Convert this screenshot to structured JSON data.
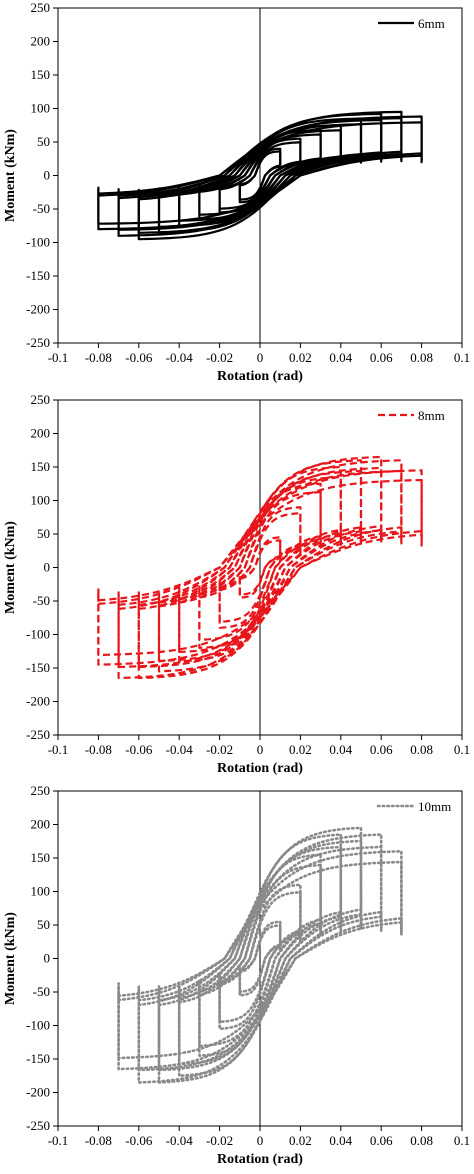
{
  "chart_data": [
    {
      "type": "line",
      "xlabel": "Rotation (rad)",
      "ylabel": "Moment (kNm)",
      "xlim": [
        -0.1,
        0.1
      ],
      "ylim": [
        -250,
        250
      ],
      "xticks": [
        "-0.1",
        "-0.08",
        "-0.06",
        "-0.04",
        "-0.02",
        "0",
        "0.02",
        "0.04",
        "0.06",
        "0.08",
        "0.1"
      ],
      "yticks": [
        "250",
        "200",
        "150",
        "100",
        "50",
        "0",
        "-50",
        "-100",
        "-150",
        "-200",
        "-250"
      ],
      "legend_position": "top-right",
      "grid": false,
      "series": [
        {
          "name": "6mm",
          "color": "#000000",
          "style": "solid",
          "envelope_amplitudes": [
            0.01,
            0.02,
            0.03,
            0.04,
            0.05,
            0.06,
            0.07,
            0.08
          ],
          "envelope_positive_peaks": [
            40,
            55,
            68,
            75,
            85,
            92,
            95,
            88
          ],
          "envelope_negative_peaks": [
            -40,
            -55,
            -65,
            -75,
            -85,
            -95,
            -90,
            -80
          ]
        }
      ]
    },
    {
      "type": "line",
      "xlabel": "Rotation (rad)",
      "ylabel": "Moment (kNm)",
      "xlim": [
        -0.1,
        0.1
      ],
      "ylim": [
        -250,
        250
      ],
      "xticks": [
        "-0.1",
        "-0.08",
        "-0.06",
        "-0.04",
        "-0.02",
        "0",
        "0.02",
        "0.04",
        "0.06",
        "0.08",
        "0.1"
      ],
      "yticks": [
        "250",
        "200",
        "150",
        "100",
        "50",
        "0",
        "-50",
        "-100",
        "-150",
        "-200",
        "-250"
      ],
      "legend_position": "top-right",
      "grid": false,
      "series": [
        {
          "name": "8mm",
          "color": "#e8161b",
          "style": "dashed",
          "envelope_amplitudes": [
            0.01,
            0.02,
            0.03,
            0.04,
            0.05,
            0.06,
            0.07,
            0.08
          ],
          "envelope_positive_peaks": [
            45,
            90,
            125,
            150,
            160,
            165,
            160,
            145
          ],
          "envelope_negative_peaks": [
            -45,
            -90,
            -120,
            -140,
            -155,
            -165,
            -165,
            -145
          ]
        }
      ]
    },
    {
      "type": "line",
      "xlabel": "Rotation (rad)",
      "ylabel": "Moment (kNm)",
      "xlim": [
        -0.1,
        0.1
      ],
      "ylim": [
        -250,
        250
      ],
      "xticks": [
        "-0.1",
        "-0.08",
        "-0.06",
        "-0.04",
        "-0.02",
        "0",
        "0.02",
        "0.04",
        "0.06",
        "0.08",
        "0.1"
      ],
      "yticks": [
        "250",
        "200",
        "150",
        "100",
        "50",
        "0",
        "-50",
        "-100",
        "-150",
        "-200",
        "-250"
      ],
      "legend_position": "top-right",
      "grid": false,
      "series": [
        {
          "name": "10mm",
          "color": "#8a8a8a",
          "style": "dotted",
          "envelope_amplitudes": [
            0.01,
            0.02,
            0.03,
            0.04,
            0.05,
            0.06,
            0.07
          ],
          "envelope_positive_peaks": [
            55,
            110,
            155,
            185,
            195,
            185,
            160
          ],
          "envelope_negative_peaks": [
            -55,
            -105,
            -145,
            -175,
            -185,
            -185,
            -165
          ]
        }
      ]
    }
  ]
}
